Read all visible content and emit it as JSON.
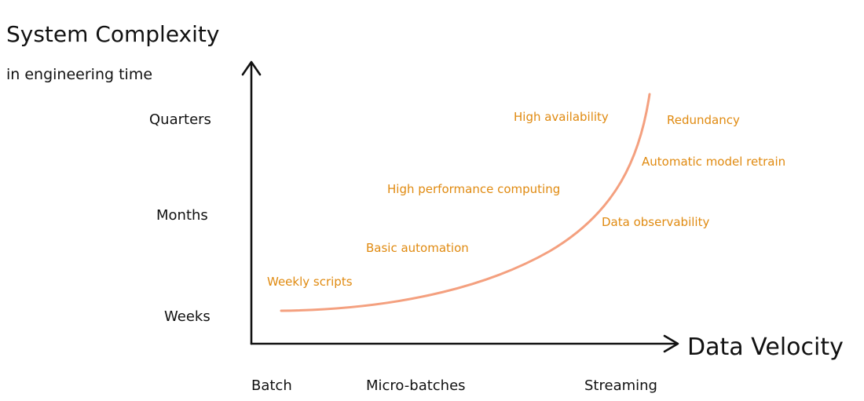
{
  "y_axis": {
    "title": "System Complexity",
    "subtitle": "in engineering time",
    "ticks": [
      "Weeks",
      "Months",
      "Quarters"
    ]
  },
  "x_axis": {
    "title": "Data Velocity",
    "ticks": [
      "Batch",
      "Micro-batches",
      "Streaming"
    ]
  },
  "annotations": [
    "Weekly scripts",
    "Basic automation",
    "High performance computing",
    "High availability",
    "Redundancy",
    "Automatic model retrain",
    "Data observability"
  ],
  "colors": {
    "curve": "#f4a07f",
    "annotation_text": "#e08a10",
    "axis": "#111111"
  }
}
